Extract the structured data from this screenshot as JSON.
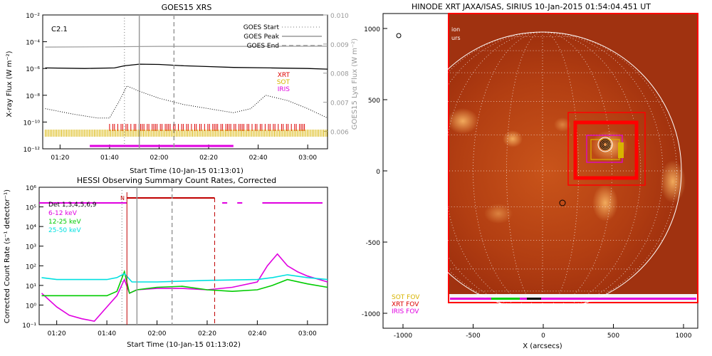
{
  "panels": {
    "goes": {
      "title": "GOES15 XRS",
      "class_label": "C2.1",
      "ylabel_left": "X-ray Flux (W m⁻²)",
      "ylabel_right": "GOES15 Lyα Flux (W m⁻²)",
      "xlabel": "Start Time (10-Jan-15 01:13:01)",
      "y_ticks": [
        "10⁻²",
        "10⁻⁴",
        "10⁻⁶",
        "10⁻⁸",
        "10⁻¹⁰",
        "10⁻¹²"
      ],
      "y2_ticks": [
        "0.010",
        "0.009",
        "0.008",
        "0.007",
        "0.006"
      ],
      "x_ticks": [
        "01:20",
        "01:40",
        "02:00",
        "02:20",
        "02:40",
        "03:00"
      ],
      "legend": [
        {
          "label": "GOES Start",
          "style": "dotted"
        },
        {
          "label": "GOES Peak",
          "style": "solid"
        },
        {
          "label": "GOES End",
          "style": "dashed"
        }
      ],
      "inst_legend": [
        {
          "label": "XRT",
          "color": "#dd0000"
        },
        {
          "label": "SOT",
          "color": "#d8b400"
        },
        {
          "label": "IRIS",
          "color": "#e000e0"
        }
      ]
    },
    "hessi": {
      "title": "HESSI Observing Summary Count Rates, Corrected",
      "ylabel": "Corrected Count Rate (s⁻¹ detector⁻¹)",
      "xlabel": "Start Time (10-Jan-15 01:13:02)",
      "y_ticks": [
        "10⁶",
        "10⁵",
        "10⁴",
        "10³",
        "10²",
        "10¹",
        "10⁰",
        "10⁻¹"
      ],
      "x_ticks": [
        "01:20",
        "01:40",
        "02:00",
        "02:20",
        "02:40",
        "03:00"
      ],
      "flag_label": "N",
      "legend": [
        {
          "label": "Det 1,3,4,5,6,9",
          "color": "#000000"
        },
        {
          "label": "6-12 keV",
          "color": "#e000e0"
        },
        {
          "label": "12-25 keV",
          "color": "#00cc00"
        },
        {
          "label": "25-50 keV",
          "color": "#00e0e0"
        }
      ]
    },
    "map": {
      "title": "HINODE XRT JAXA/ISAS, SIRIUS 10-Jan-2015 01:54:04.451 UT",
      "xlabel": "X (arcsecs)",
      "x_ticks": [
        "-1000",
        "-500",
        "0",
        "500",
        "1000"
      ],
      "y_ticks": [
        "1000",
        "500",
        "0",
        "-500",
        "-1000"
      ],
      "corner_text": [
        "ion",
        "urs"
      ],
      "fov_legend": [
        {
          "label": "SOT FOV",
          "color": "#d8b400"
        },
        {
          "label": "XRT FOV",
          "color": "#dd0000"
        },
        {
          "label": "IRIS FOV",
          "color": "#e000e0"
        }
      ]
    }
  },
  "chart_data": [
    {
      "type": "line",
      "title": "GOES15 XRS",
      "xlabel": "Start Time (10-Jan-15 01:13:01)",
      "ylabel": "X-ray Flux (W m⁻²)",
      "yscale": "log",
      "ylim": [
        1e-12,
        0.01
      ],
      "x_range": [
        "01:13",
        "03:08"
      ],
      "series": [
        {
          "name": "",
          "style": "solid-grey",
          "x": [
            "01:14",
            "01:40",
            "02:00",
            "02:40",
            "03:08"
          ],
          "values": [
            4e-05,
            4.2e-05,
            4.5e-05,
            4.5e-05,
            4.6e-05
          ]
        },
        {
          "name": "",
          "style": "solid-black",
          "x": [
            "01:14",
            "01:30",
            "01:42",
            "01:46",
            "01:52",
            "02:00",
            "02:10",
            "02:20",
            "02:30",
            "02:45",
            "03:00",
            "03:08"
          ],
          "values": [
            1.1e-06,
            1e-06,
            1.1e-06,
            1.6e-06,
            2.1e-06,
            2e-06,
            1.6e-06,
            1.4e-06,
            1.2e-06,
            1.1e-06,
            1e-06,
            9e-07
          ]
        },
        {
          "name": "",
          "style": "dotted-black",
          "x": [
            "01:14",
            "01:25",
            "01:35",
            "01:40",
            "01:44",
            "01:47",
            "01:52",
            "02:00",
            "02:10",
            "02:20",
            "02:30",
            "02:37",
            "02:43",
            "02:52",
            "03:00",
            "03:08"
          ],
          "values": [
            1e-09,
            4e-10,
            2e-10,
            2e-10,
            4e-09,
            5e-08,
            2e-08,
            6e-09,
            2e-09,
            1e-09,
            5e-10,
            1e-09,
            1e-08,
            4e-09,
            1e-09,
            2e-10
          ]
        }
      ],
      "markers": {
        "goes_start": "01:46",
        "goes_peak": "01:52",
        "goes_end": "02:06"
      },
      "observations": {
        "XRT": [
          "01:40",
          "03:00"
        ],
        "SOT": [
          "01:14",
          "03:08"
        ],
        "IRIS": [
          "01:32",
          "02:30"
        ]
      }
    },
    {
      "type": "line",
      "title": "HESSI Observing Summary Count Rates, Corrected",
      "xlabel": "Start Time (10-Jan-15 01:13:02)",
      "ylabel": "Corrected Count Rate (s⁻¹ detector⁻¹)",
      "yscale": "log",
      "ylim": [
        0.1,
        1000000.0
      ],
      "x_range": [
        "01:13",
        "03:08"
      ],
      "series": [
        {
          "name": "6-12 keV",
          "x": [
            "01:14",
            "01:20",
            "01:25",
            "01:30",
            "01:35",
            "01:40",
            "01:44",
            "01:47",
            "01:49",
            "01:52",
            "02:00",
            "02:10",
            "02:20",
            "02:30",
            "02:40",
            "02:44",
            "02:48",
            "02:52",
            "02:56",
            "03:00",
            "03:08"
          ],
          "values": [
            4,
            0.8,
            0.3,
            0.2,
            0.15,
            0.8,
            3,
            20,
            4,
            6,
            7,
            7,
            6,
            8,
            15,
            100,
            400,
            100,
            50,
            30,
            15
          ]
        },
        {
          "name": "12-25 keV",
          "x": [
            "01:14",
            "01:20",
            "01:30",
            "01:40",
            "01:44",
            "01:47",
            "01:49",
            "01:52",
            "02:00",
            "02:10",
            "02:20",
            "02:30",
            "02:40",
            "02:46",
            "02:52",
            "03:00",
            "03:08"
          ],
          "values": [
            3,
            3,
            3,
            3,
            5,
            50,
            4,
            6,
            8,
            9,
            6,
            5,
            6,
            10,
            20,
            12,
            8
          ]
        },
        {
          "name": "25-50 keV",
          "x": [
            "01:14",
            "01:20",
            "01:40",
            "01:44",
            "01:47",
            "01:50",
            "02:00",
            "02:20",
            "02:40",
            "02:46",
            "02:52",
            "03:00",
            "03:08"
          ],
          "values": [
            25,
            20,
            20,
            25,
            40,
            15,
            15,
            18,
            20,
            25,
            35,
            25,
            20
          ]
        }
      ],
      "markers": {
        "goes_start": "01:46",
        "goes_peak": "01:52",
        "goes_end": "02:06"
      },
      "flags": {
        "night_start": "01:48",
        "night_end": "02:23",
        "observing": [
          [
            "01:13",
            "01:48"
          ],
          [
            "02:26",
            "02:28"
          ],
          [
            "02:32",
            "02:34"
          ],
          [
            "02:42",
            "03:06"
          ]
        ]
      }
    }
  ]
}
